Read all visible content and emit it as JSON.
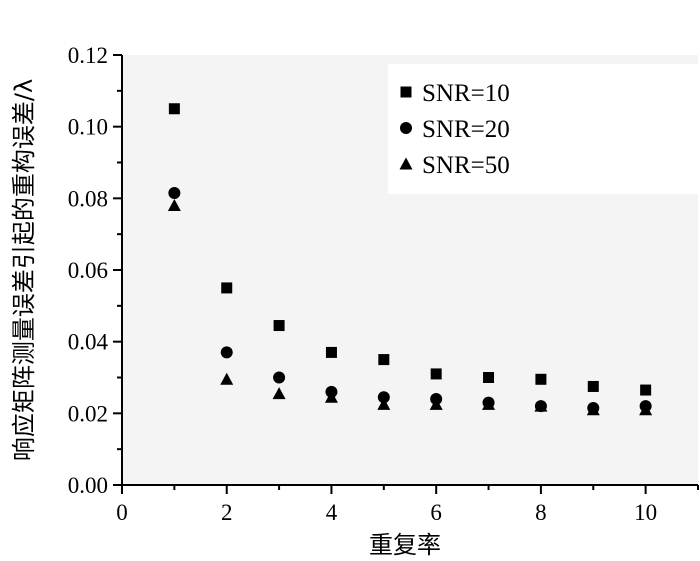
{
  "chart_data": {
    "type": "scatter",
    "xlabel": "重复率",
    "ylabel": "响应矩阵测量误差引起的重构误差/λ",
    "xlim": [
      0,
      11
    ],
    "ylim": [
      0,
      0.12
    ],
    "xticks": [
      0,
      2,
      4,
      6,
      8,
      10
    ],
    "xtick_labels": [
      "0",
      "2",
      "4",
      "6",
      "8",
      "10"
    ],
    "yticks": [
      0,
      0.02,
      0.04,
      0.06,
      0.08,
      0.1,
      0.12
    ],
    "ytick_labels": [
      "0.00",
      "0.02",
      "0.04",
      "0.06",
      "0.08",
      "0.10",
      "0.12"
    ],
    "grid": false,
    "legend_position": "top-right",
    "series": [
      {
        "name": "SNR=10",
        "marker": "square",
        "x": [
          1,
          2,
          3,
          4,
          5,
          6,
          7,
          8,
          9,
          10
        ],
        "y": [
          0.105,
          0.055,
          0.0445,
          0.037,
          0.035,
          0.031,
          0.03,
          0.0295,
          0.0275,
          0.0265
        ]
      },
      {
        "name": "SNR=20",
        "marker": "circle",
        "x": [
          1,
          2,
          3,
          4,
          5,
          6,
          7,
          8,
          9,
          10
        ],
        "y": [
          0.0815,
          0.037,
          0.03,
          0.026,
          0.0245,
          0.024,
          0.023,
          0.022,
          0.0215,
          0.022
        ]
      },
      {
        "name": "SNR=50",
        "marker": "triangle",
        "x": [
          1,
          2,
          3,
          4,
          5,
          6,
          7,
          8,
          9,
          10
        ],
        "y": [
          0.078,
          0.0295,
          0.0255,
          0.0245,
          0.0225,
          0.0225,
          0.0225,
          0.022,
          0.021,
          0.021
        ]
      }
    ]
  }
}
